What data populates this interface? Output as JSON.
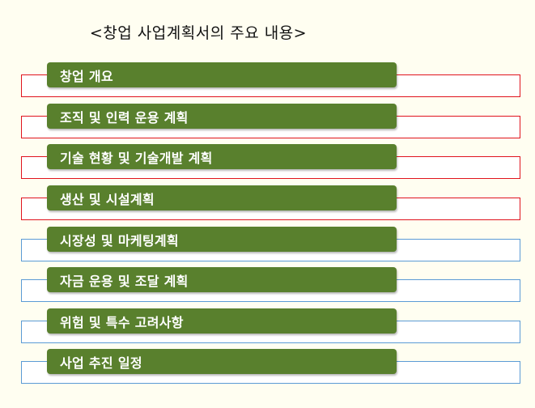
{
  "title": "<창업 사업계획서의 주요 내용>",
  "colors": {
    "background": "#fffef1",
    "item_fill": "#59802d",
    "item_text": "#ffffff",
    "frame_red": "#e0141e",
    "frame_blue": "#5b9bd5"
  },
  "items": [
    {
      "label": "창업 개요",
      "frame_color": "red"
    },
    {
      "label": "조직 및 인력 운용 계획",
      "frame_color": "red"
    },
    {
      "label": "기술 현황 및 기술개발 계획",
      "frame_color": "red"
    },
    {
      "label": "생산 및 시설계획",
      "frame_color": "red"
    },
    {
      "label": "시장성 및 마케팅계획",
      "frame_color": "blue"
    },
    {
      "label": "자금 운용 및 조달 계획",
      "frame_color": "blue"
    },
    {
      "label": "위험 및 특수 고려사항",
      "frame_color": "blue"
    },
    {
      "label": "사업 추진 일정",
      "frame_color": "blue"
    }
  ]
}
